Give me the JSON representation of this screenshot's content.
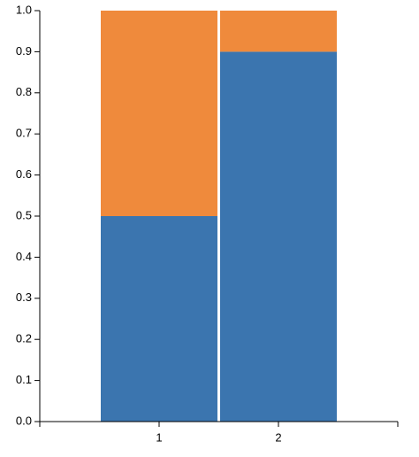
{
  "chart_data": {
    "type": "stacked-bar",
    "categories": [
      "1",
      "2"
    ],
    "series": [
      {
        "color": "#3b75af",
        "values": [
          0.5,
          0.9
        ]
      },
      {
        "color": "#ef8a3c",
        "values": [
          0.5,
          0.1
        ]
      }
    ],
    "ylim": [
      0,
      1
    ],
    "yticks": [
      {
        "value": 0,
        "label": "0.0"
      },
      0.1,
      0.2,
      0.3,
      0.4,
      0.5,
      0.6,
      0.7,
      0.8,
      0.9,
      {
        "value": 1,
        "label": "1.0"
      }
    ]
  }
}
